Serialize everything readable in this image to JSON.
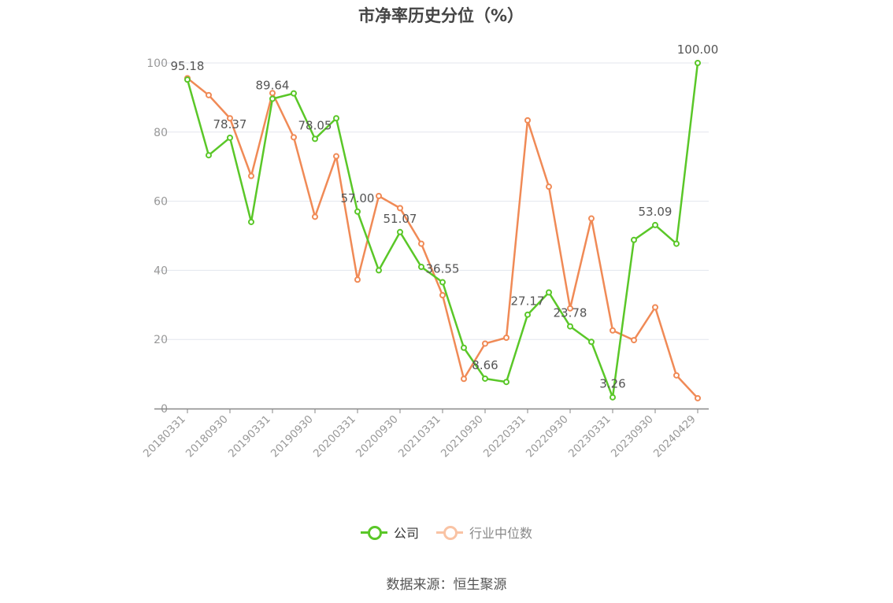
{
  "chart_data": {
    "type": "line",
    "title": "市净率历史分位（%）",
    "xlabel": "",
    "ylabel": "",
    "ylim": [
      0,
      100
    ],
    "yticks": [
      0,
      20,
      40,
      60,
      80,
      100
    ],
    "x": [
      "20180331",
      "20180630",
      "20180930",
      "20181231",
      "20190331",
      "20190630",
      "20190930",
      "20191231",
      "20200331",
      "20200630",
      "20200930",
      "20201231",
      "20210331",
      "20210630",
      "20210930",
      "20211231",
      "20220331",
      "20220630",
      "20220930",
      "20221231",
      "20230331",
      "20230630",
      "20230930",
      "20231231",
      "20240429"
    ],
    "xtick_labels": [
      "20180331",
      "20180930",
      "20190331",
      "20190930",
      "20200331",
      "20200930",
      "20210331",
      "20210930",
      "20220331",
      "20220930",
      "20230331",
      "20230930",
      "20240429"
    ],
    "series": [
      {
        "name": "公司",
        "color": "#5ac728",
        "values": [
          95.18,
          73.3,
          78.37,
          54.0,
          89.64,
          91.2,
          78.05,
          84.0,
          57.0,
          40.0,
          51.07,
          41.0,
          36.55,
          17.6,
          8.66,
          7.7,
          27.17,
          33.6,
          23.78,
          19.3,
          3.26,
          48.8,
          53.09,
          47.7,
          100.0
        ],
        "labels": [
          "95.18",
          null,
          "78.37",
          null,
          "89.64",
          null,
          "78.05",
          null,
          "57.00",
          null,
          "51.07",
          null,
          "36.55",
          null,
          "8.66",
          null,
          "27.17",
          null,
          "23.78",
          null,
          "3.26",
          null,
          "53.09",
          null,
          "100.00"
        ]
      },
      {
        "name": "行业中位数",
        "color": "#f08a56",
        "values": [
          95.6,
          90.7,
          84.0,
          67.3,
          91.3,
          78.5,
          55.5,
          73.0,
          37.3,
          61.5,
          58.0,
          47.7,
          32.8,
          8.6,
          18.8,
          20.5,
          83.4,
          64.2,
          29.0,
          55.0,
          22.6,
          19.8,
          29.3,
          9.6,
          3.0
        ],
        "labels": []
      }
    ],
    "legend": {
      "position": "bottom-center",
      "items": [
        "公司",
        "行业中位数"
      ]
    },
    "grid": true
  },
  "source_text": "数据来源：恒生聚源"
}
